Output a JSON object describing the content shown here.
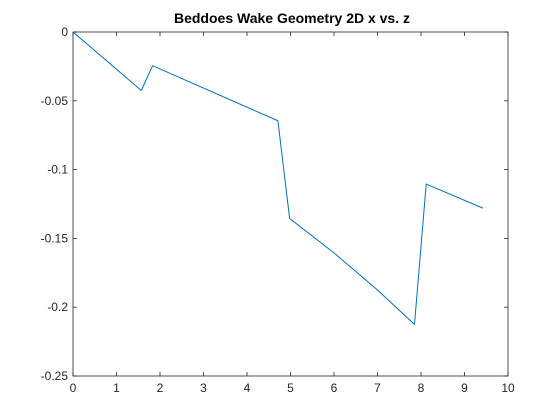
{
  "chart_data": {
    "type": "line",
    "title": "Beddoes Wake Geometry 2D x vs. z",
    "xlabel": "",
    "ylabel": "",
    "xlim": [
      0,
      10
    ],
    "ylim": [
      -0.25,
      0
    ],
    "xticks": [
      0,
      1,
      2,
      3,
      4,
      5,
      6,
      7,
      8,
      9,
      10
    ],
    "yticks": [
      0,
      -0.05,
      -0.1,
      -0.15,
      -0.2,
      -0.25
    ],
    "xtick_labels": [
      "0",
      "1",
      "2",
      "3",
      "4",
      "5",
      "6",
      "7",
      "8",
      "9",
      "10"
    ],
    "ytick_labels": [
      "0",
      "-0.05",
      "-0.1",
      "-0.15",
      "-0.2",
      "-0.25"
    ],
    "grid": false,
    "series": [
      {
        "color": "#0072BD",
        "x": [
          0,
          1.57,
          1.83,
          4.71,
          4.98,
          6.0,
          7.0,
          7.85,
          8.12,
          9.42
        ],
        "y": [
          0,
          -0.0425,
          -0.0245,
          -0.0645,
          -0.1355,
          -0.1605,
          -0.1875,
          -0.2125,
          -0.1105,
          -0.128
        ]
      }
    ]
  }
}
